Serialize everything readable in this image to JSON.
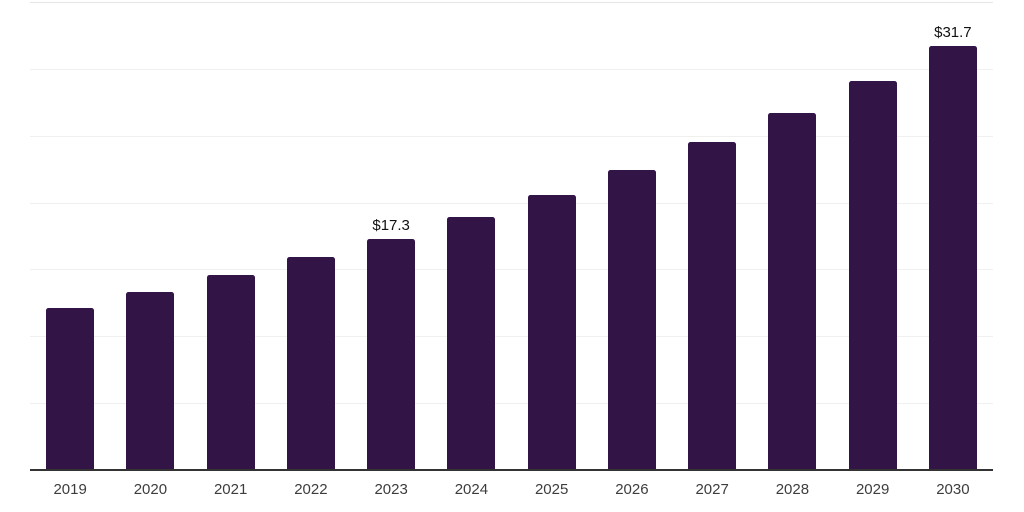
{
  "chart_data": {
    "type": "bar",
    "title": "",
    "xlabel": "",
    "ylabel": "",
    "categories": [
      "2019",
      "2020",
      "2021",
      "2022",
      "2023",
      "2024",
      "2025",
      "2026",
      "2027",
      "2028",
      "2029",
      "2030"
    ],
    "values": [
      12.1,
      13.3,
      14.6,
      15.9,
      17.3,
      18.9,
      20.6,
      22.4,
      24.5,
      26.7,
      29.1,
      31.7
    ],
    "data_labels": [
      {
        "category": "2023",
        "text": "$17.3"
      },
      {
        "category": "2030",
        "text": "$31.7"
      }
    ],
    "value_prefix": "$",
    "ylim": [
      0,
      35
    ],
    "gridline_step": 5,
    "grid": "horizontal",
    "legend": "none",
    "y_tick_labels_visible": false,
    "colors": {
      "bar": "#321447",
      "axis_line": "#333333",
      "x_label": "#3d3d3d",
      "data_label": "#111111",
      "gridline": "#f0f0f0",
      "gridline_top": "#e6e6e6",
      "background": "#ffffff"
    }
  }
}
